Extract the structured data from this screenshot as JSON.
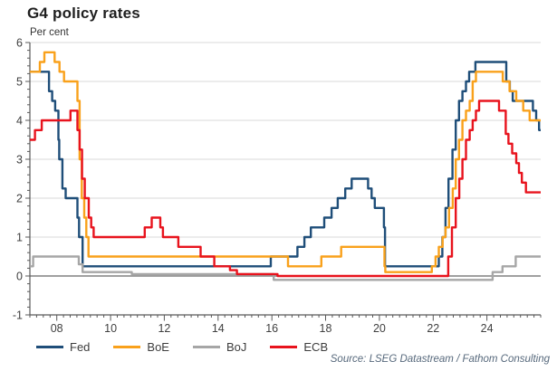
{
  "header": {
    "title": "G4 policy rates",
    "unit": "Per cent"
  },
  "footer": {
    "source": "Source: LSEG Datastream / Fathom Consulting"
  },
  "chart_data": {
    "type": "line",
    "line_style": "step-after",
    "title": "G4 policy rates",
    "ylabel": "Per cent",
    "xlabel": "",
    "xlim": [
      2007,
      2026
    ],
    "ylim": [
      -1,
      6
    ],
    "x_minor_tick": 0.25,
    "y_minor_tick": 0.2,
    "grid": {
      "mode": "horizontal",
      "color": "#d9d9d9",
      "zero_line_color": "#808080"
    },
    "axis_color": "#595959",
    "label_color": "#404040",
    "legend_position": "bottom",
    "xticks": [
      {
        "v": 2008,
        "label": "08"
      },
      {
        "v": 2010,
        "label": "10"
      },
      {
        "v": 2012,
        "label": "12"
      },
      {
        "v": 2014,
        "label": "14"
      },
      {
        "v": 2016,
        "label": "16"
      },
      {
        "v": 2018,
        "label": "18"
      },
      {
        "v": 2020,
        "label": "20"
      },
      {
        "v": 2022,
        "label": "22"
      },
      {
        "v": 2024,
        "label": "24"
      }
    ],
    "yticks": [
      -1,
      0,
      1,
      2,
      3,
      4,
      5,
      6
    ],
    "series": [
      {
        "name": "Fed",
        "color": "#1f4e79",
        "points": [
          [
            2007.0,
            5.25
          ],
          [
            2007.71,
            4.75
          ],
          [
            2007.83,
            4.5
          ],
          [
            2007.94,
            4.25
          ],
          [
            2008.06,
            3.5
          ],
          [
            2008.09,
            3.0
          ],
          [
            2008.21,
            2.25
          ],
          [
            2008.33,
            2.0
          ],
          [
            2008.77,
            1.5
          ],
          [
            2008.83,
            1.0
          ],
          [
            2008.96,
            0.25
          ],
          [
            2015.96,
            0.5
          ],
          [
            2016.95,
            0.75
          ],
          [
            2017.21,
            1.0
          ],
          [
            2017.45,
            1.25
          ],
          [
            2017.95,
            1.5
          ],
          [
            2018.22,
            1.75
          ],
          [
            2018.45,
            2.0
          ],
          [
            2018.73,
            2.25
          ],
          [
            2018.97,
            2.5
          ],
          [
            2019.58,
            2.25
          ],
          [
            2019.71,
            2.0
          ],
          [
            2019.83,
            1.75
          ],
          [
            2020.17,
            1.25
          ],
          [
            2020.21,
            0.25
          ],
          [
            2022.21,
            0.5
          ],
          [
            2022.34,
            1.0
          ],
          [
            2022.46,
            1.75
          ],
          [
            2022.57,
            2.5
          ],
          [
            2022.72,
            3.25
          ],
          [
            2022.84,
            4.0
          ],
          [
            2022.96,
            4.5
          ],
          [
            2023.09,
            4.75
          ],
          [
            2023.22,
            5.0
          ],
          [
            2023.34,
            5.25
          ],
          [
            2023.57,
            5.5
          ],
          [
            2024.72,
            5.0
          ],
          [
            2024.85,
            4.75
          ],
          [
            2024.96,
            4.5
          ],
          [
            2025.71,
            4.25
          ],
          [
            2025.83,
            4.0
          ],
          [
            2025.94,
            3.75
          ]
        ]
      },
      {
        "name": "BoE",
        "color": "#f9a11b",
        "points": [
          [
            2007.0,
            5.25
          ],
          [
            2007.37,
            5.5
          ],
          [
            2007.54,
            5.75
          ],
          [
            2007.92,
            5.5
          ],
          [
            2008.1,
            5.25
          ],
          [
            2008.27,
            5.0
          ],
          [
            2008.77,
            4.5
          ],
          [
            2008.85,
            3.0
          ],
          [
            2008.93,
            2.0
          ],
          [
            2009.02,
            1.5
          ],
          [
            2009.1,
            1.0
          ],
          [
            2009.18,
            0.5
          ],
          [
            2016.6,
            0.25
          ],
          [
            2017.84,
            0.5
          ],
          [
            2018.58,
            0.75
          ],
          [
            2020.19,
            0.25
          ],
          [
            2020.22,
            0.1
          ],
          [
            2021.95,
            0.25
          ],
          [
            2022.09,
            0.5
          ],
          [
            2022.21,
            0.75
          ],
          [
            2022.35,
            1.0
          ],
          [
            2022.46,
            1.25
          ],
          [
            2022.59,
            1.75
          ],
          [
            2022.73,
            2.25
          ],
          [
            2022.84,
            3.0
          ],
          [
            2022.96,
            3.5
          ],
          [
            2023.09,
            4.0
          ],
          [
            2023.22,
            4.25
          ],
          [
            2023.36,
            4.5
          ],
          [
            2023.47,
            5.0
          ],
          [
            2023.59,
            5.25
          ],
          [
            2024.59,
            5.0
          ],
          [
            2024.84,
            4.75
          ],
          [
            2025.09,
            4.5
          ],
          [
            2025.35,
            4.25
          ],
          [
            2025.59,
            4.0
          ]
        ]
      },
      {
        "name": "BoJ",
        "color": "#a6a6a6",
        "points": [
          [
            2007.0,
            0.25
          ],
          [
            2007.12,
            0.5
          ],
          [
            2008.82,
            0.3
          ],
          [
            2008.96,
            0.1
          ],
          [
            2010.79,
            0.05
          ],
          [
            2016.07,
            -0.1
          ],
          [
            2024.21,
            0.1
          ],
          [
            2024.58,
            0.25
          ],
          [
            2025.07,
            0.5
          ]
        ]
      },
      {
        "name": "ECB",
        "color": "#e8131d",
        "points": [
          [
            2007.0,
            3.5
          ],
          [
            2007.19,
            3.75
          ],
          [
            2007.44,
            4.0
          ],
          [
            2008.51,
            4.25
          ],
          [
            2008.77,
            3.75
          ],
          [
            2008.85,
            3.25
          ],
          [
            2008.94,
            2.5
          ],
          [
            2009.04,
            2.0
          ],
          [
            2009.19,
            1.5
          ],
          [
            2009.28,
            1.25
          ],
          [
            2009.37,
            1.0
          ],
          [
            2011.27,
            1.25
          ],
          [
            2011.53,
            1.5
          ],
          [
            2011.85,
            1.25
          ],
          [
            2011.95,
            1.0
          ],
          [
            2012.52,
            0.75
          ],
          [
            2013.35,
            0.5
          ],
          [
            2013.86,
            0.25
          ],
          [
            2014.44,
            0.15
          ],
          [
            2014.7,
            0.05
          ],
          [
            2016.21,
            0.0
          ],
          [
            2022.56,
            0.5
          ],
          [
            2022.7,
            1.25
          ],
          [
            2022.84,
            2.0
          ],
          [
            2022.97,
            2.5
          ],
          [
            2023.09,
            3.0
          ],
          [
            2023.22,
            3.5
          ],
          [
            2023.36,
            3.75
          ],
          [
            2023.47,
            4.0
          ],
          [
            2023.59,
            4.25
          ],
          [
            2023.71,
            4.5
          ],
          [
            2024.45,
            4.25
          ],
          [
            2024.7,
            3.65
          ],
          [
            2024.8,
            3.4
          ],
          [
            2024.94,
            3.15
          ],
          [
            2025.09,
            2.9
          ],
          [
            2025.19,
            2.65
          ],
          [
            2025.3,
            2.4
          ],
          [
            2025.45,
            2.15
          ]
        ]
      }
    ]
  }
}
